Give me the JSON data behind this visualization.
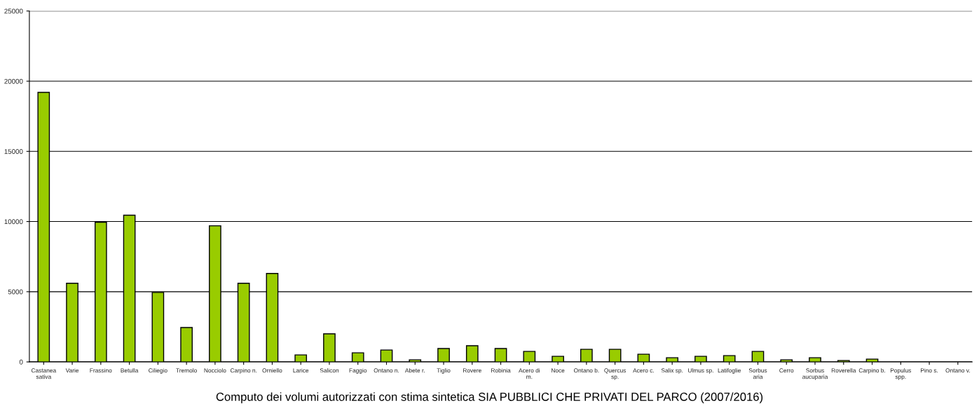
{
  "chart_data": {
    "type": "bar",
    "title": "Computo dei volumi autorizzati con stima sintetica SIA PUBBLICI CHE PRIVATI DEL PARCO (2007/2016)",
    "categories": [
      "Castanea\nsativa",
      "Varie",
      "Frassino",
      "Betulla",
      "Ciliegio",
      "Tremolo",
      "Nocciolo",
      "Carpino n.",
      "Orniello",
      "Larice",
      "Salicon",
      "Faggio",
      "Ontano n.",
      "Abete r.",
      "Tiglio",
      "Rovere",
      "Robinia",
      "Acero di\nm.",
      "Noce",
      "Ontano b.",
      "Quercus\nsp.",
      "Acero c.",
      "Salix sp.",
      "Ulmus sp.",
      "Latifoglie",
      "Sorbus\naria",
      "Cerro",
      "Sorbus\naucuparia",
      "Roverella",
      "Carpino b.",
      "Populus\nspp.",
      "Pino s.",
      "Ontano v."
    ],
    "values": [
      19200,
      5600,
      9950,
      10450,
      4950,
      2450,
      9700,
      5600,
      6300,
      500,
      2000,
      650,
      850,
      150,
      950,
      1150,
      950,
      750,
      400,
      900,
      900,
      550,
      300,
      400,
      450,
      750,
      150,
      300,
      100,
      200,
      0,
      0,
      0
    ],
    "color": "#99cc00",
    "ylim": [
      0,
      25000
    ],
    "yticks": [
      0,
      5000,
      10000,
      15000,
      20000,
      25000
    ],
    "grid": "y"
  }
}
